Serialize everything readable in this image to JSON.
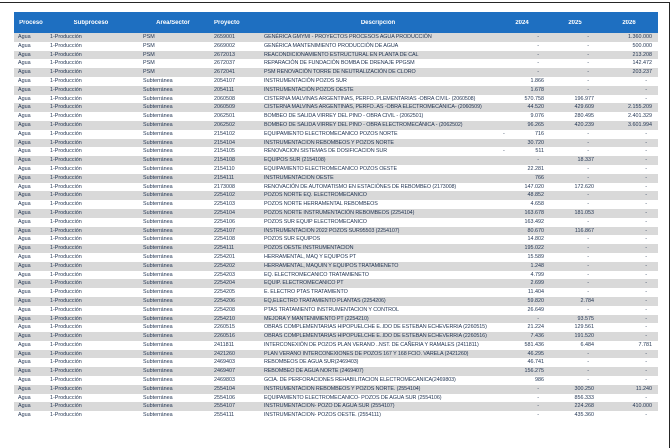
{
  "colors": {
    "header_bg": "#1e6fc1",
    "header_text": "#ffffff",
    "stripe": "#d9d9d9",
    "text": "#1f3250"
  },
  "table": {
    "columns": [
      "Proceso",
      "Subproceso",
      "Área/Sector",
      "Proyecto",
      "Descripción",
      "2024",
      "2025",
      "2026"
    ],
    "rows": [
      {
        "proceso": "Agua",
        "subproceso": "1-Producción",
        "area": "PSM",
        "proyecto": "2659001",
        "descripcion": "GENÉRICA GMYMI - PROYECTOS PROCESOS AGUA PRODUCCIÓN",
        "y2024": "-",
        "y2025": "-",
        "y2026": "1.360.000"
      },
      {
        "proceso": "Agua",
        "subproceso": "1-Producción",
        "area": "PSM",
        "proyecto": "2669002",
        "descripcion": "GENÉRICA MANTENIMIENTO PRODUCCIÓN DE AGUA",
        "y2024": "-",
        "y2025": "-",
        "y2026": "500.000"
      },
      {
        "proceso": "Agua",
        "subproceso": "1-Producción",
        "area": "PSM",
        "proyecto": "2672013",
        "descripcion": "REACONDICIONAMIENTO ESTRUCTURAL EN PLANTA DE CAL",
        "y2024": "-",
        "y2025": "-",
        "y2026": "213.208"
      },
      {
        "proceso": "Agua",
        "subproceso": "1-Producción",
        "area": "PSM",
        "proyecto": "2672037",
        "descripcion": "REPARACIÓN DE FUNDACIÓN BOMBA DE DRENAJE PPGSM",
        "y2024": "-",
        "y2025": "-",
        "y2026": "142.472"
      },
      {
        "proceso": "Agua",
        "subproceso": "1-Producción",
        "area": "PSM",
        "proyecto": "2672041",
        "descripcion": "PSM RENOVACIÓN TORRE DE NEUTRALIZACIÓN DE CLORO",
        "y2024": "-",
        "y2025": "-",
        "y2026": "203.237"
      },
      {
        "proceso": "Agua",
        "subproceso": "1-Producción",
        "area": "Subterránea",
        "proyecto": "2054107",
        "descripcion": "INSTRUMENTACIÓN POZOS SUR",
        "y2024": "1.866",
        "y2025": "-",
        "y2026": "-"
      },
      {
        "proceso": "Agua",
        "subproceso": "1-Producción",
        "area": "Subterránea",
        "proyecto": "2054111",
        "descripcion": "INSTRUMENTACIÓN POZOS OESTE",
        "y2024": "1.678",
        "y2025": "-",
        "y2026": "-"
      },
      {
        "proceso": "Agua",
        "subproceso": "1-Producción",
        "area": "Subterránea",
        "proyecto": "2060508",
        "descripcion": "CISTERNA MALVINAS ARGENTINAS, PERFO..PLEMENTARIAS -OBRA CIVIL- (2060508)",
        "y2024": "570.758",
        "y2025": "196.977",
        "y2026": "-"
      },
      {
        "proceso": "Agua",
        "subproceso": "1-Producción",
        "area": "Subterránea",
        "proyecto": "2060509",
        "descripcion": "CISTERNA MALVINAS ARGENTINAS, PERFO..AS -OBRA ELECTROMECÁNICA- (2060509)",
        "y2024": "44.520",
        "y2025": "429.609",
        "y2026": "2.155.209"
      },
      {
        "proceso": "Agua",
        "subproceso": "1-Producción",
        "area": "Subterránea",
        "proyecto": "2062501",
        "descripcion": "BOMBEO DE SALIDA VIRREY DEL PINO - OBRA CIVIL - (2062501)",
        "y2024": "9.076",
        "y2025": "280.495",
        "y2026": "2.401.329"
      },
      {
        "proceso": "Agua",
        "subproceso": "1-Producción",
        "area": "Subterránea",
        "proyecto": "2062502",
        "descripcion": "BOMBEO DE SALIDA VIRREY DEL PINO - OBRA ELECTROMECÁNICA - (2062502)",
        "y2024": "96.265",
        "y2025": "420.239",
        "y2026": "3.601.994"
      },
      {
        "proceso": "Agua",
        "subproceso": "1-Producción",
        "area": "Subterránea",
        "proyecto": "2154102",
        "descripcion": "EQUIPAMIENTO ELECTROMECANICO POZOS NORTE",
        "y2024": "- 716",
        "y2025": "-",
        "y2026": "-"
      },
      {
        "proceso": "Agua",
        "subproceso": "1-Producción",
        "area": "Subterránea",
        "proyecto": "2154104",
        "descripcion": "INSTRUMENTACION REBOMBEOS Y POZOS NORTE",
        "y2024": "30.720",
        "y2025": "-",
        "y2026": "-"
      },
      {
        "proceso": "Agua",
        "subproceso": "1-Producción",
        "area": "Subterránea",
        "proyecto": "2154105",
        "descripcion": "RENOVACION SISTEMAS DE DOSIFICACION SUR",
        "y2024": "- 511",
        "y2025": "-",
        "y2026": "-"
      },
      {
        "proceso": "Agua",
        "subproceso": "1-Producción",
        "area": "Subterránea",
        "proyecto": "2154108",
        "descripcion": "EQUIPOS SUR (2154108)",
        "y2024": "-",
        "y2025": "18.337",
        "y2026": "-"
      },
      {
        "proceso": "Agua",
        "subproceso": "1-Producción",
        "area": "Subterránea",
        "proyecto": "2154110",
        "descripcion": "EQUIPAMIENTO ELECTROMECANICO POZOS OESTE",
        "y2024": "22.281",
        "y2025": "-",
        "y2026": "-"
      },
      {
        "proceso": "Agua",
        "subproceso": "1-Producción",
        "area": "Subterránea",
        "proyecto": "2154111",
        "descripcion": "INSTRUMENTACION OESTE",
        "y2024": "766",
        "y2025": "-",
        "y2026": "-"
      },
      {
        "proceso": "Agua",
        "subproceso": "1-Producción",
        "area": "Subterránea",
        "proyecto": "2173008",
        "descripcion": "RENOVACIÓN DE AUTOMATISMO EN ESTACIÓNES DE REBOMBEO (2173008)",
        "y2024": "147.020",
        "y2025": "172.620",
        "y2026": "-"
      },
      {
        "proceso": "Agua",
        "subproceso": "1-Producción",
        "area": "Subterránea",
        "proyecto": "2254102",
        "descripcion": "POZOS NORTE EQ. ELECTROMECANICO",
        "y2024": "48.852",
        "y2025": "-",
        "y2026": "-"
      },
      {
        "proceso": "Agua",
        "subproceso": "1-Producción",
        "area": "Subterránea",
        "proyecto": "2254103",
        "descripcion": "POZOS NORTE HERRAMENTAL REBOMBEOS",
        "y2024": "4.658",
        "y2025": "-",
        "y2026": "-"
      },
      {
        "proceso": "Agua",
        "subproceso": "1-Producción",
        "area": "Subterránea",
        "proyecto": "2254104",
        "descripcion": "POZOS NORTE INSTRUMENTACIÓN REBOMBEOS (2254104)",
        "y2024": "163.678",
        "y2025": "181.053",
        "y2026": "-"
      },
      {
        "proceso": "Agua",
        "subproceso": "1-Producción",
        "area": "Subterránea",
        "proyecto": "2254106",
        "descripcion": "POZOS SUR EQUIP ELECTROMECANICO",
        "y2024": "163.492",
        "y2025": "-",
        "y2026": "-"
      },
      {
        "proceso": "Agua",
        "subproceso": "1-Producción",
        "area": "Subterránea",
        "proyecto": "2254107",
        "descripcion": "INSTRUMENTACION 2022 POZOS SUR95503 (2254107)",
        "y2024": "80.670",
        "y2025": "116.867",
        "y2026": "-"
      },
      {
        "proceso": "Agua",
        "subproceso": "1-Producción",
        "area": "Subterránea",
        "proyecto": "2254108",
        "descripcion": "POZOS SUR EQUIPOS",
        "y2024": "14.802",
        "y2025": "-",
        "y2026": "-"
      },
      {
        "proceso": "Agua",
        "subproceso": "1-Producción",
        "area": "Subterránea",
        "proyecto": "2254111",
        "descripcion": "POZOS OESTE INSTRUMENTACION",
        "y2024": "195.022",
        "y2025": "-",
        "y2026": "-"
      },
      {
        "proceso": "Agua",
        "subproceso": "1-Producción",
        "area": "Subterránea",
        "proyecto": "2254201",
        "descripcion": "HERRAMENTAL, MAQ Y EQUIPOS PT",
        "y2024": "15.589",
        "y2025": "-",
        "y2026": "-"
      },
      {
        "proceso": "Agua",
        "subproceso": "1-Producción",
        "area": "Subterránea",
        "proyecto": "2254202",
        "descripcion": "HERRAMENTAL, MAQUIN Y EQUIPOS TRATAMIENETO",
        "y2024": "1.248",
        "y2025": "-",
        "y2026": "-"
      },
      {
        "proceso": "Agua",
        "subproceso": "1-Producción",
        "area": "Subterránea",
        "proyecto": "2254203",
        "descripcion": "EQ. ELECTROMECANICO TRATAMIENETO",
        "y2024": "4.799",
        "y2025": "-",
        "y2026": "-"
      },
      {
        "proceso": "Agua",
        "subproceso": "1-Producción",
        "area": "Subterránea",
        "proyecto": "2254204",
        "descripcion": "EQUIP. ELECTROMECANICO PT",
        "y2024": "2.699",
        "y2025": "-",
        "y2026": "-"
      },
      {
        "proceso": "Agua",
        "subproceso": "1-Producción",
        "area": "Subterránea",
        "proyecto": "2254205",
        "descripcion": "E. ELECTRO PTAS TRATAMIENTO",
        "y2024": "11.404",
        "y2025": "-",
        "y2026": "-"
      },
      {
        "proceso": "Agua",
        "subproceso": "1-Producción",
        "area": "Subterránea",
        "proyecto": "2254206",
        "descripcion": "EQ,ELECTRO TRATAMIENTO PLANTAS (2254206)",
        "y2024": "59.820",
        "y2025": "2.784",
        "y2026": "-"
      },
      {
        "proceso": "Agua",
        "subproceso": "1-Producción",
        "area": "Subterránea",
        "proyecto": "2254208",
        "descripcion": "PTAS TRATAMIENTO INSTRUMENTACION Y CONTROL",
        "y2024": "26.649",
        "y2025": "-",
        "y2026": "-"
      },
      {
        "proceso": "Agua",
        "subproceso": "1-Producción",
        "area": "Subterránea",
        "proyecto": "2254210",
        "descripcion": "MEJORA Y MANTENIMIENTO PT (2254210)",
        "y2024": "-",
        "y2025": "93.575",
        "y2026": "-"
      },
      {
        "proceso": "Agua",
        "subproceso": "1-Producción",
        "area": "Subterránea",
        "proyecto": "2260515",
        "descripcion": "OBRAS COMPLEMENTARIAS HIPOPUELCHE E..IDO DE ESTEBAN ECHEVERRIA (2260515)",
        "y2024": "21.224",
        "y2025": "129.561",
        "y2026": "-"
      },
      {
        "proceso": "Agua",
        "subproceso": "1-Producción",
        "area": "Subterránea",
        "proyecto": "2260516",
        "descripcion": "OBRAS COMPLEMENTARIAS HIPOPUELCHE E..IDO DE ESTEBAN ECHEVERRIA (2260516)",
        "y2024": "7.436",
        "y2025": "191.520",
        "y2026": "-"
      },
      {
        "proceso": "Agua",
        "subproceso": "1-Producción",
        "area": "Subterránea",
        "proyecto": "2411811",
        "descripcion": "INTERCONEXIÓN DE POZOS PLAN VERANO ..NST. DE CAÑERIA Y RAMALES (2411811)",
        "y2024": "581.436",
        "y2025": "6.484",
        "y2026": "7.781"
      },
      {
        "proceso": "Agua",
        "subproceso": "1-Producción",
        "area": "Subterránea",
        "proyecto": "2421260",
        "descripcion": "PLAN VERANO INTERCONEXIONES DE POZOS 167 Y 168 FCIO. VARELA (2421260)",
        "y2024": "46.295",
        "y2025": "-",
        "y2026": "-"
      },
      {
        "proceso": "Agua",
        "subproceso": "1-Producción",
        "area": "Subterránea",
        "proyecto": "2469403",
        "descripcion": "REBOMBEOS DE AGUA SUR(2469403)",
        "y2024": "46.741",
        "y2025": "-",
        "y2026": "-"
      },
      {
        "proceso": "Agua",
        "subproceso": "1-Producción",
        "area": "Subterránea",
        "proyecto": "2469407",
        "descripcion": "REBOMBEO DE AGUA NORTE (2469407)",
        "y2024": "156.275",
        "y2025": "-",
        "y2026": "-"
      },
      {
        "proceso": "Agua",
        "subproceso": "1-Producción",
        "area": "Subterránea",
        "proyecto": "2469803",
        "descripcion": "GCIA. DE PERFORACIONES REHABILITACION ELECTROMECANICA(2469803)",
        "y2024": "986",
        "y2025": "-",
        "y2026": "-"
      },
      {
        "proceso": "Agua",
        "subproceso": "1-Producción",
        "area": "Subterránea",
        "proyecto": "2554104",
        "descripcion": "INSTRUMENTACION REBOMBEOS Y POZOS NORTE. (2554104)",
        "y2024": "-",
        "y2025": "300.250",
        "y2026": "11.240"
      },
      {
        "proceso": "Agua",
        "subproceso": "1-Producción",
        "area": "Subterránea",
        "proyecto": "2554106",
        "descripcion": "EQUIPAMIENTO ELECTROMECANICO- POZOS DE AGUA SUR (2554106)",
        "y2024": "-",
        "y2025": "856.333",
        "y2026": "-"
      },
      {
        "proceso": "Agua",
        "subproceso": "1-Producción",
        "area": "Subterránea",
        "proyecto": "2554107",
        "descripcion": "INSTRUMENTACION- POZO DE AGUA SUR (2554107)",
        "y2024": "-",
        "y2025": "224.268",
        "y2026": "410.000"
      },
      {
        "proceso": "Agua",
        "subproceso": "1-Producción",
        "area": "Subterránea",
        "proyecto": "2554111",
        "descripcion": "INSTRUMENTACION- POZOS OESTE. (2554111)",
        "y2024": "-",
        "y2025": "435.360",
        "y2026": "-"
      }
    ]
  }
}
